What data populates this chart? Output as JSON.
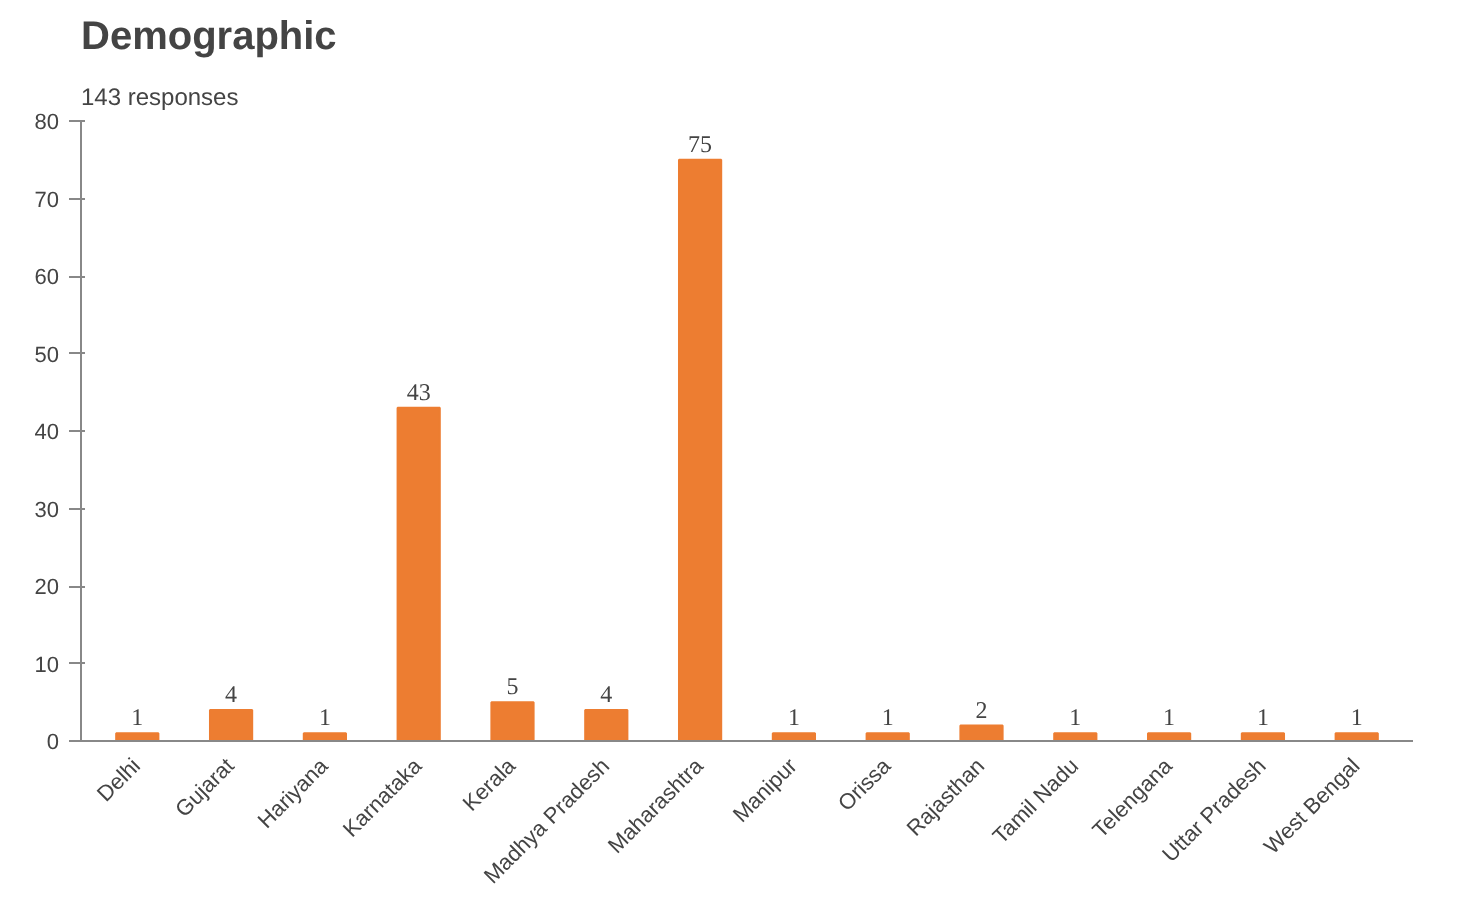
{
  "chart_data": {
    "type": "bar",
    "title": "Demographic",
    "subtitle": "143 responses",
    "categories": [
      "Delhi",
      "Gujarat",
      "Hariyana",
      "Karnataka",
      "Kerala",
      "Madhya Pradesh",
      "Maharashtra",
      "Manipur",
      "Orissa",
      "Rajasthan",
      "Tamil Nadu",
      "Telengana",
      "Uttar Pradesh",
      "West Bengal"
    ],
    "values": [
      1,
      4,
      1,
      43,
      5,
      4,
      75,
      1,
      1,
      2,
      1,
      1,
      1,
      1
    ],
    "color": "#ed7d31",
    "ylim": [
      0,
      80
    ],
    "yticks": [
      0,
      10,
      20,
      30,
      40,
      50,
      60,
      70,
      80
    ],
    "grid": false,
    "data_labels": true
  }
}
